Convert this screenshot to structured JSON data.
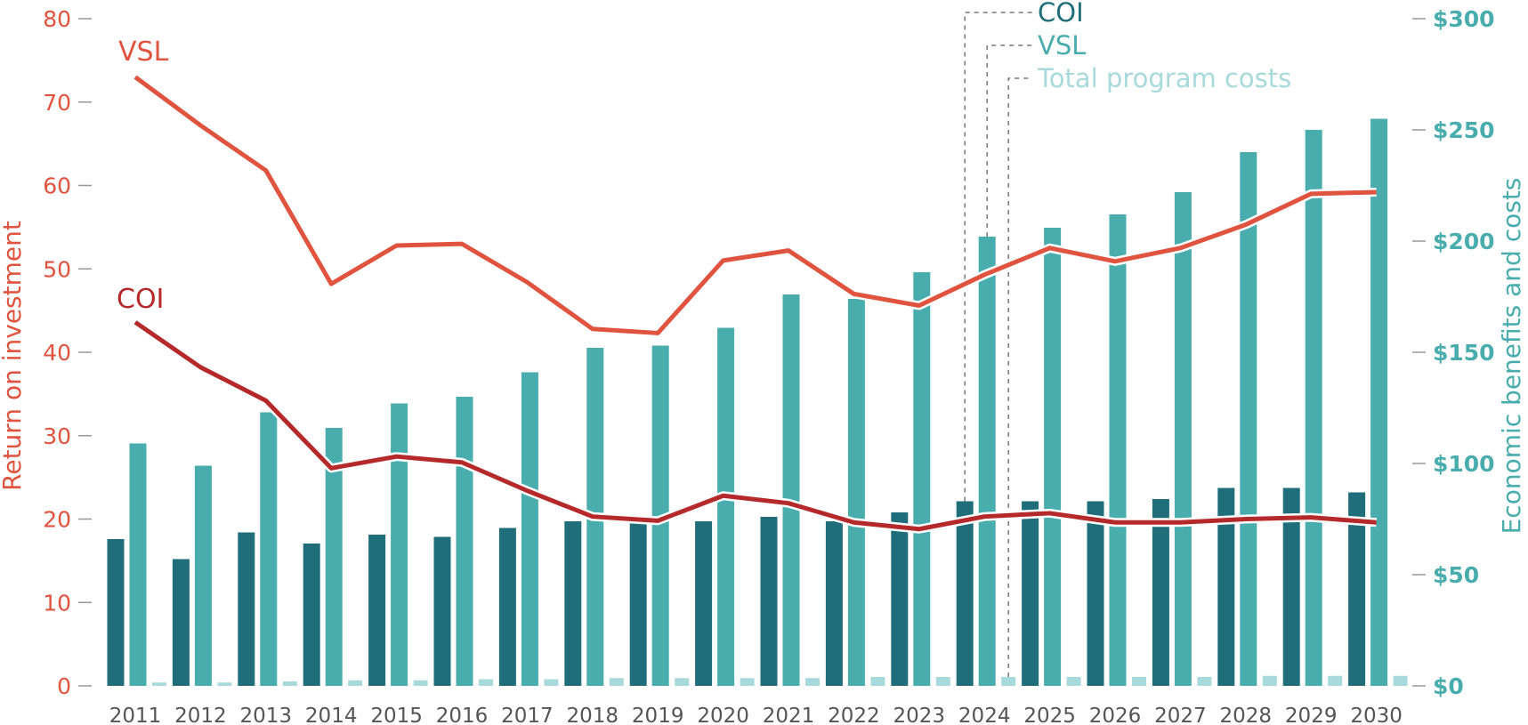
{
  "chart_data": {
    "type": "bar+line",
    "categories": [
      "2011",
      "2012",
      "2013",
      "2014",
      "2015",
      "2016",
      "2017",
      "2018",
      "2019",
      "2020",
      "2021",
      "2022",
      "2023",
      "2024",
      "2025",
      "2026",
      "2027",
      "2028",
      "2029",
      "2030"
    ],
    "left_axis": {
      "title": "Return on investment",
      "range": [
        0,
        80
      ],
      "ticks": [
        0,
        10,
        20,
        30,
        40,
        50,
        60,
        70,
        80
      ],
      "tick_labels": [
        "0",
        "10",
        "20",
        "30",
        "40",
        "50",
        "60",
        "70",
        "80"
      ]
    },
    "right_axis": {
      "title": "Economic benefits and costs",
      "range": [
        0,
        300
      ],
      "ticks": [
        0,
        50,
        100,
        150,
        200,
        250,
        300
      ],
      "tick_labels": [
        "$0",
        "$50",
        "$100",
        "$150",
        "$200",
        "$250",
        "$300"
      ]
    },
    "bar_series": [
      {
        "name": "COI",
        "color": "#1f6e7a",
        "axis": "right",
        "values": [
          66,
          57,
          69,
          64,
          68,
          67,
          71,
          74,
          73,
          74,
          76,
          74,
          78,
          83,
          83,
          83,
          84,
          89,
          89,
          87
        ]
      },
      {
        "name": "VSL",
        "color": "#4aadad",
        "axis": "right",
        "values": [
          109,
          99,
          123,
          116,
          127,
          130,
          141,
          152,
          153,
          161,
          176,
          174,
          186,
          202,
          206,
          212,
          222,
          240,
          250,
          255
        ]
      },
      {
        "name": "Total program costs",
        "color": "#a8d9db",
        "axis": "right",
        "values": [
          1.5,
          1.5,
          2,
          2.5,
          2.5,
          3,
          3,
          3.5,
          3.5,
          3.5,
          3.5,
          4,
          4,
          4,
          4,
          4,
          4,
          4.5,
          4.5,
          4.5
        ]
      }
    ],
    "line_series": [
      {
        "name": "VSL",
        "color": "#e0533f",
        "axis": "left",
        "values": [
          73,
          67.2,
          61.8,
          48.2,
          52.8,
          53,
          48.4,
          42.8,
          42.3,
          51,
          52.2,
          47,
          45.6,
          49.3,
          52.5,
          50.9,
          52.5,
          55.3,
          59,
          59.2
        ]
      },
      {
        "name": "COI",
        "color": "#b5292a",
        "axis": "left",
        "values": [
          43.6,
          38.2,
          34.2,
          26.1,
          27.5,
          26.8,
          23.4,
          20.3,
          19.8,
          22.8,
          21.9,
          19.6,
          18.8,
          20.3,
          20.7,
          19.6,
          19.6,
          20,
          20.2,
          19.6
        ]
      }
    ],
    "series_labels": {
      "vsl": "VSL",
      "coi": "COI"
    },
    "legend": {
      "placement": "top",
      "items": [
        {
          "label": "COI",
          "color": "#1f6e7a"
        },
        {
          "label": "VSL",
          "color": "#4aadad"
        },
        {
          "label": "Total program costs",
          "color": "#a8d9db"
        }
      ]
    },
    "grid": false
  }
}
